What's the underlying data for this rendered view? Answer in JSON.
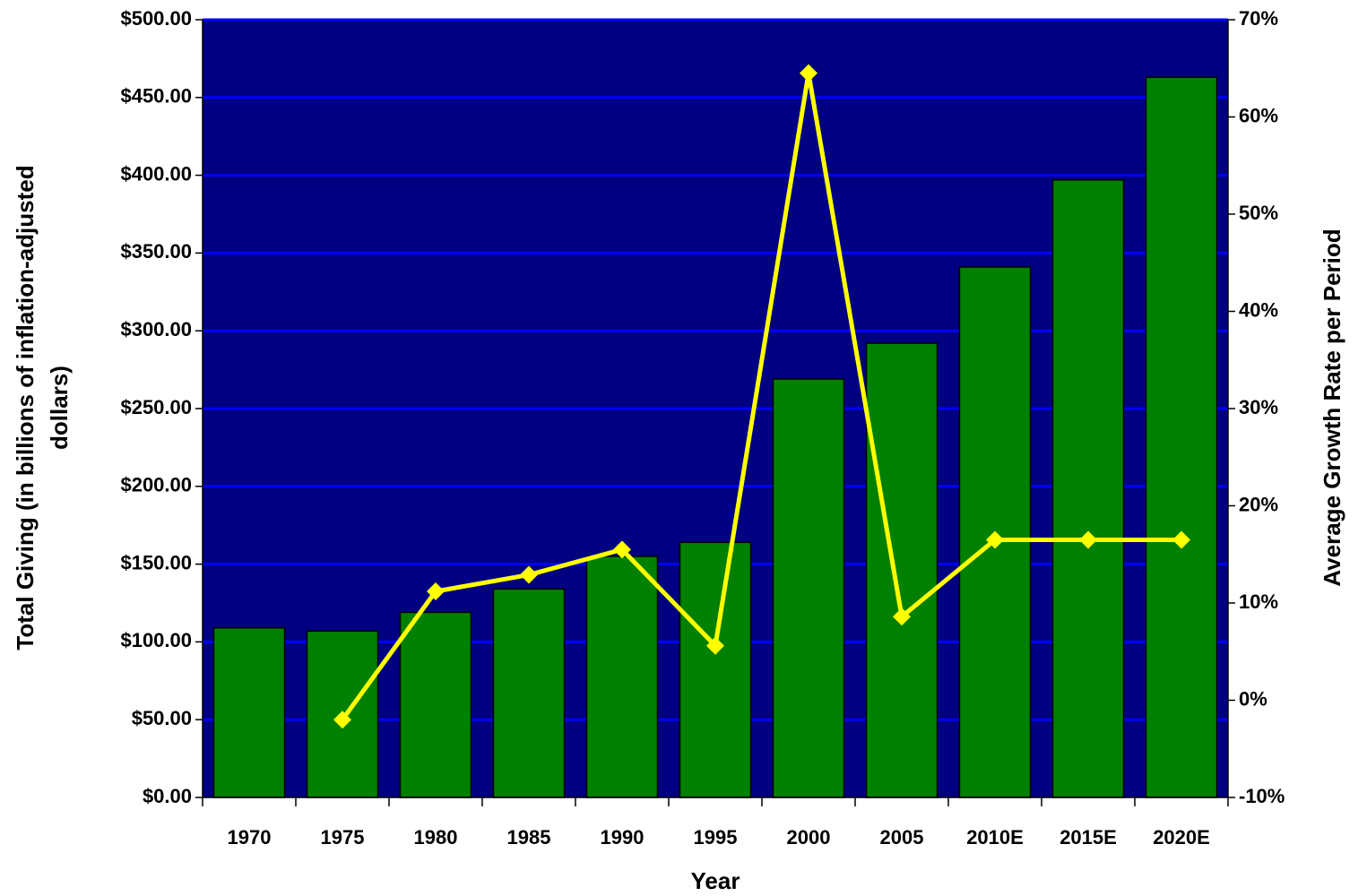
{
  "chart_data": {
    "type": "bar",
    "xlabel": "Year",
    "ylabel": [
      "Total Giving (in billions of inflation-adjusted",
      "dollars)"
    ],
    "y2label": "Average Growth Rate per Period",
    "categories": [
      "1970",
      "1975",
      "1980",
      "1985",
      "1990",
      "1995",
      "2000",
      "2005",
      "2010E",
      "2015E",
      "2020E"
    ],
    "series": [
      {
        "type": "bar",
        "color": "#008000",
        "values": [
          109,
          107,
          119,
          134,
          155,
          164,
          269,
          292,
          341,
          397,
          463
        ]
      },
      {
        "type": "line",
        "axis": "y2",
        "color": "#ffff00",
        "values": [
          null,
          -2,
          11.2,
          12.9,
          15.5,
          5.6,
          64.5,
          8.6,
          16.5,
          16.5,
          16.5
        ]
      }
    ],
    "ylim": [
      0,
      500
    ],
    "yticks": [
      {
        "value": 0,
        "label": "$0.00"
      },
      {
        "value": 50,
        "label": "$50.00"
      },
      {
        "value": 100,
        "label": "$100.00"
      },
      {
        "value": 150,
        "label": "$150.00"
      },
      {
        "value": 200,
        "label": "$200.00"
      },
      {
        "value": 250,
        "label": "$250.00"
      },
      {
        "value": 300,
        "label": "$300.00"
      },
      {
        "value": 350,
        "label": "$350.00"
      },
      {
        "value": 400,
        "label": "$400.00"
      },
      {
        "value": 450,
        "label": "$450.00"
      },
      {
        "value": 500,
        "label": "$500.00"
      }
    ],
    "y2lim": [
      -10,
      70
    ],
    "y2ticks": [
      {
        "value": -10,
        "label": "-10%"
      },
      {
        "value": 0,
        "label": "0%"
      },
      {
        "value": 10,
        "label": "10%"
      },
      {
        "value": 20,
        "label": "20%"
      },
      {
        "value": 30,
        "label": "30%"
      },
      {
        "value": 40,
        "label": "40%"
      },
      {
        "value": 50,
        "label": "50%"
      },
      {
        "value": 60,
        "label": "60%"
      },
      {
        "value": 70,
        "label": "70%"
      }
    ],
    "grid": true,
    "plot_background": "#000080",
    "grid_color": "#0000ff"
  }
}
